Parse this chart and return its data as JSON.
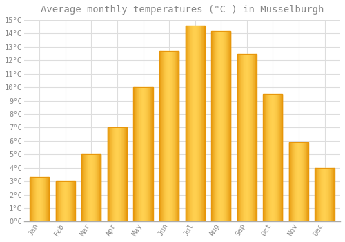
{
  "title": "Average monthly temperatures (°C ) in Musselburgh",
  "months": [
    "Jan",
    "Feb",
    "Mar",
    "Apr",
    "May",
    "Jun",
    "Jul",
    "Aug",
    "Sep",
    "Oct",
    "Nov",
    "Dec"
  ],
  "temperatures": [
    3.3,
    3.0,
    5.0,
    7.0,
    10.0,
    12.7,
    14.6,
    14.2,
    12.5,
    9.5,
    5.9,
    4.0
  ],
  "bar_color_edge": "#E8960A",
  "bar_color_center": "#FFD050",
  "bar_color_main": "#FFAA10",
  "ylim": [
    0,
    15
  ],
  "yticks": [
    0,
    1,
    2,
    3,
    4,
    5,
    6,
    7,
    8,
    9,
    10,
    11,
    12,
    13,
    14,
    15
  ],
  "background_color": "#ffffff",
  "plot_bg_color": "#ffffff",
  "grid_color": "#dddddd",
  "title_fontsize": 10,
  "tick_fontsize": 7.5,
  "font_color": "#888888",
  "bar_width": 0.75
}
